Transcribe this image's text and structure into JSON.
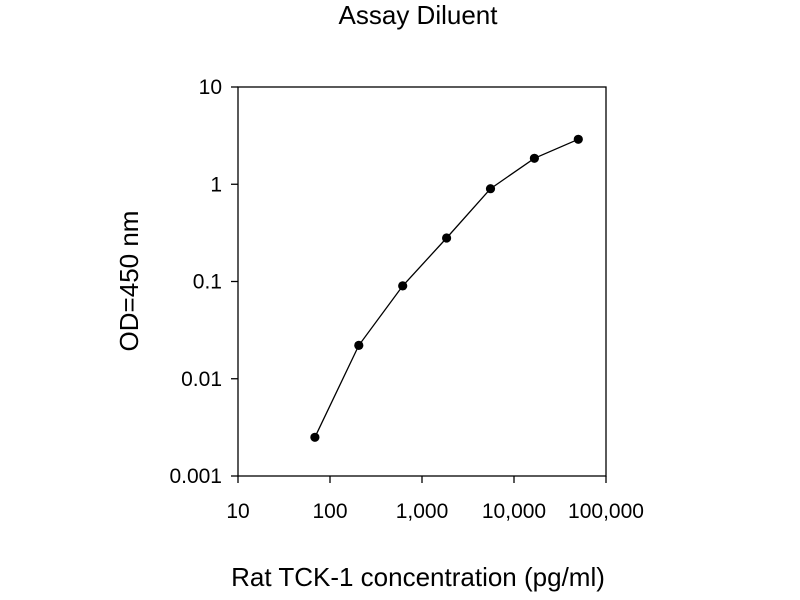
{
  "chart_data": {
    "type": "scatter",
    "title": "Assay Diluent",
    "xlabel": "Rat TCK-1 concentration (pg/ml)",
    "ylabel": "OD=450 nm",
    "x_scale": "log",
    "y_scale": "log",
    "xlim": [
      10,
      100000
    ],
    "ylim": [
      0.001,
      10
    ],
    "x_ticks": [
      10,
      100,
      1000,
      10000,
      100000
    ],
    "x_tick_labels": [
      "10",
      "100",
      "1,000",
      "10,000",
      "100,000"
    ],
    "y_ticks": [
      0.001,
      0.01,
      0.1,
      1,
      10
    ],
    "y_tick_labels": [
      "0.001",
      "0.01",
      "0.1",
      "1",
      "10"
    ],
    "grid": false,
    "legend": "none",
    "connected": true,
    "colors": {
      "line": "#000000",
      "marker": "#000000",
      "frame": "#000000"
    },
    "series": [
      {
        "x": [
          68.6,
          205.8,
          617.3,
          1852,
          5556,
          16667,
          50000
        ],
        "y": [
          0.0025,
          0.022,
          0.09,
          0.28,
          0.9,
          1.85,
          2.9
        ]
      }
    ]
  }
}
